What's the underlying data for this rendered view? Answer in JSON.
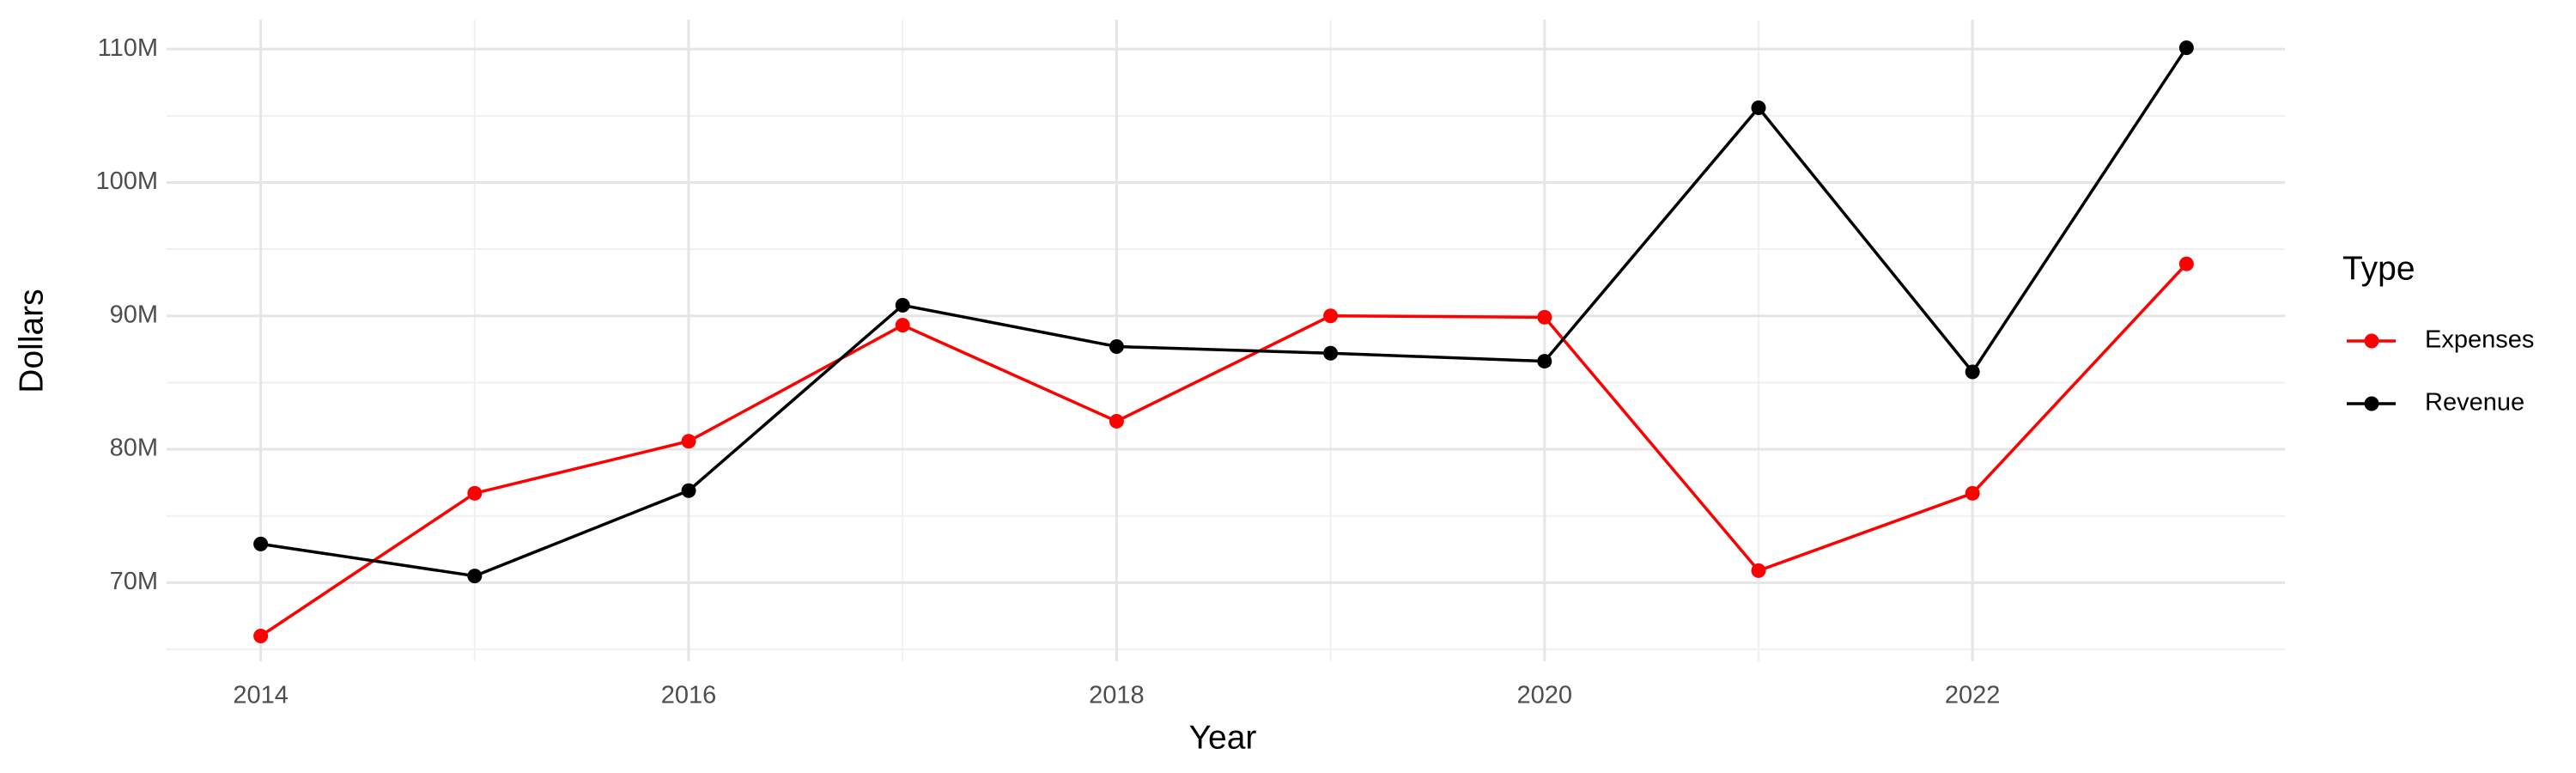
{
  "chart_data": {
    "type": "line",
    "x_label": "Year",
    "y_label": "Dollars",
    "legend_title": "Type",
    "x": [
      2014,
      2015,
      2016,
      2017,
      2018,
      2019,
      2020,
      2021,
      2022,
      2023
    ],
    "series": [
      {
        "name": "Expenses",
        "color": "#ff0000",
        "values": [
          66000000,
          76700000,
          80600000,
          89300000,
          82100000,
          90000000,
          89900000,
          70900000,
          76700000,
          93900000
        ]
      },
      {
        "name": "Revenue",
        "color": "#000000",
        "values": [
          72900000,
          70500000,
          76900000,
          90800000,
          87700000,
          87200000,
          86600000,
          105600000,
          85800000,
          110100000
        ]
      }
    ],
    "xlim": [
      2013.56,
      2023.46
    ],
    "xticks": [
      2014,
      2016,
      2018,
      2020,
      2022
    ],
    "ylim": [
      64100000,
      112200000
    ],
    "yticks": [
      {
        "value": 70000000,
        "label": "70M"
      },
      {
        "value": 80000000,
        "label": "80M"
      },
      {
        "value": 90000000,
        "label": "90M"
      },
      {
        "value": 100000000,
        "label": "100M"
      },
      {
        "value": 110000000,
        "label": "110M"
      }
    ],
    "grid": true,
    "legend_position": "right"
  }
}
